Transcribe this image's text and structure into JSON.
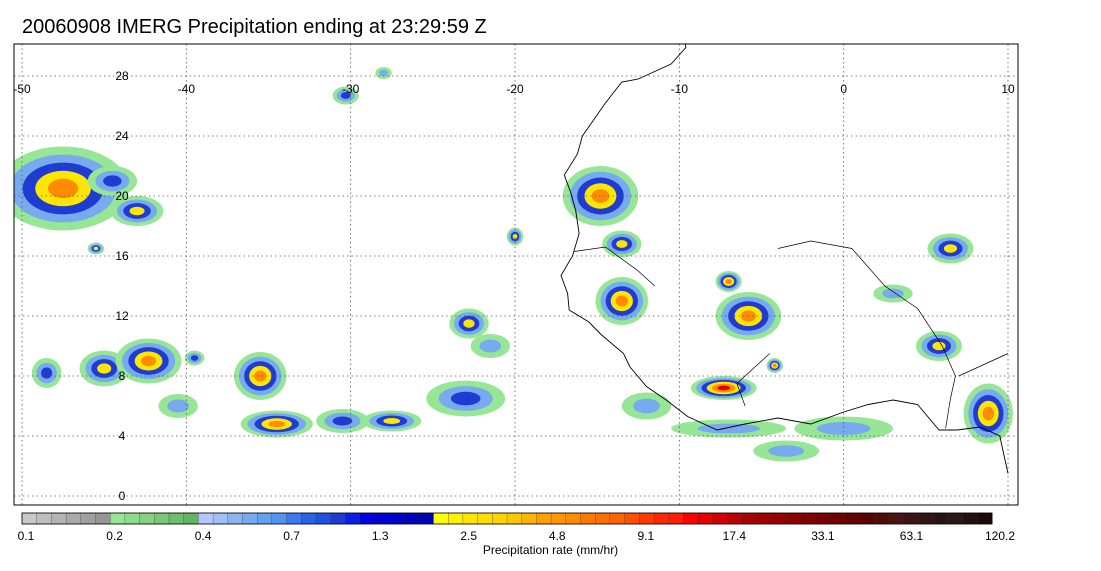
{
  "title": "20060908 IMERG Precipitation ending at 23:29:59 Z",
  "map": {
    "lon_range": [
      -50,
      10
    ],
    "lat_range": [
      -1,
      31
    ],
    "lon_ticks": [
      "-50",
      "-40",
      "-30",
      "-20",
      "-10",
      "0",
      "10"
    ],
    "lat_ticks": [
      "28",
      "24",
      "20",
      "16",
      "12",
      "8",
      "4",
      "0"
    ],
    "grid": "dotted",
    "coastline_color": "#000000",
    "rain_cells": [
      {
        "lon": -47.5,
        "lat": 20.5,
        "rx": 4.0,
        "ry": 2.8,
        "peak": 4
      },
      {
        "lon": -44.5,
        "lat": 21.0,
        "rx": 1.5,
        "ry": 1.0,
        "peak": 2
      },
      {
        "lon": -43.0,
        "lat": 19.0,
        "rx": 1.6,
        "ry": 1.0,
        "peak": 3
      },
      {
        "lon": -45.5,
        "lat": 16.5,
        "rx": 0.5,
        "ry": 0.4,
        "peak": 3
      },
      {
        "lon": -48.5,
        "lat": 8.2,
        "rx": 0.9,
        "ry": 1.0,
        "peak": 2
      },
      {
        "lon": -45.0,
        "lat": 8.5,
        "rx": 1.5,
        "ry": 1.2,
        "peak": 3
      },
      {
        "lon": -42.3,
        "lat": 9.0,
        "rx": 2.0,
        "ry": 1.5,
        "peak": 4
      },
      {
        "lon": -39.5,
        "lat": 9.2,
        "rx": 0.6,
        "ry": 0.5,
        "peak": 2
      },
      {
        "lon": -40.5,
        "lat": 6.0,
        "rx": 1.2,
        "ry": 0.8,
        "peak": 1
      },
      {
        "lon": -35.5,
        "lat": 8.0,
        "rx": 1.6,
        "ry": 1.6,
        "peak": 4
      },
      {
        "lon": -34.5,
        "lat": 4.8,
        "rx": 2.2,
        "ry": 0.9,
        "peak": 4
      },
      {
        "lon": -30.5,
        "lat": 5.0,
        "rx": 1.6,
        "ry": 0.8,
        "peak": 2
      },
      {
        "lon": -27.5,
        "lat": 5.0,
        "rx": 1.8,
        "ry": 0.7,
        "peak": 3
      },
      {
        "lon": -23.0,
        "lat": 6.5,
        "rx": 2.4,
        "ry": 1.2,
        "peak": 2
      },
      {
        "lon": -22.8,
        "lat": 11.5,
        "rx": 1.2,
        "ry": 1.0,
        "peak": 3
      },
      {
        "lon": -21.5,
        "lat": 10.0,
        "rx": 1.2,
        "ry": 0.8,
        "peak": 1
      },
      {
        "lon": -20.0,
        "lat": 17.3,
        "rx": 0.5,
        "ry": 0.6,
        "peak": 3
      },
      {
        "lon": -14.8,
        "lat": 20.0,
        "rx": 2.3,
        "ry": 2.0,
        "peak": 4
      },
      {
        "lon": -13.5,
        "lat": 16.8,
        "rx": 1.2,
        "ry": 0.9,
        "peak": 3
      },
      {
        "lon": -13.5,
        "lat": 13.0,
        "rx": 1.6,
        "ry": 1.6,
        "peak": 4
      },
      {
        "lon": -12.0,
        "lat": 6.0,
        "rx": 1.5,
        "ry": 0.9,
        "peak": 1
      },
      {
        "lon": -7.0,
        "lat": 14.3,
        "rx": 0.8,
        "ry": 0.7,
        "peak": 4
      },
      {
        "lon": -5.8,
        "lat": 12.0,
        "rx": 2.0,
        "ry": 1.6,
        "peak": 4
      },
      {
        "lon": -7.3,
        "lat": 7.2,
        "rx": 2.0,
        "ry": 0.8,
        "peak": 5
      },
      {
        "lon": -4.2,
        "lat": 8.7,
        "rx": 0.5,
        "ry": 0.5,
        "peak": 4
      },
      {
        "lon": -7.0,
        "lat": 4.5,
        "rx": 3.5,
        "ry": 0.6,
        "peak": 1
      },
      {
        "lon": 6.5,
        "lat": 16.5,
        "rx": 1.4,
        "ry": 1.0,
        "peak": 3
      },
      {
        "lon": 5.8,
        "lat": 10.0,
        "rx": 1.4,
        "ry": 1.0,
        "peak": 3
      },
      {
        "lon": 8.8,
        "lat": 5.5,
        "rx": 1.5,
        "ry": 2.0,
        "peak": 4
      },
      {
        "lon": 0.0,
        "lat": 4.5,
        "rx": 3.0,
        "ry": 0.8,
        "peak": 1
      },
      {
        "lon": -30.3,
        "lat": 26.7,
        "rx": 0.8,
        "ry": 0.6,
        "peak": 2
      },
      {
        "lon": -28.0,
        "lat": 28.2,
        "rx": 0.5,
        "ry": 0.4,
        "peak": 1
      },
      {
        "lon": -3.5,
        "lat": 3.0,
        "rx": 2.0,
        "ry": 0.7,
        "peak": 1
      },
      {
        "lon": 3.0,
        "lat": 13.5,
        "rx": 1.2,
        "ry": 0.6,
        "peak": 1
      }
    ]
  },
  "colorbar": {
    "label": "Precipitation rate (mm/hr)",
    "tick_labels": [
      "0.1",
      "0.2",
      "0.4",
      "0.7",
      "1.3",
      "2.5",
      "4.8",
      "9.1",
      "17.4",
      "33.1",
      "63.1",
      "120.2"
    ],
    "colors": [
      "#c8c8c8",
      "#bebebe",
      "#b4b4b4",
      "#aaaaaa",
      "#a0a0a0",
      "#969696",
      "#96e696",
      "#8cdc8c",
      "#82d282",
      "#78c878",
      "#6ebe6e",
      "#64b464",
      "#b4c8ff",
      "#a0bef8",
      "#8cb4f0",
      "#78aaf0",
      "#64a0f0",
      "#5096f0",
      "#3c78f0",
      "#2864e6",
      "#1e50e6",
      "#1e3cd2",
      "#0a1ee6",
      "#0000e6",
      "#0000d2",
      "#0000c8",
      "#0000be",
      "#0000b4",
      "#ffff00",
      "#fff000",
      "#ffe600",
      "#ffdc00",
      "#ffd200",
      "#ffc800",
      "#ffb400",
      "#ffa000",
      "#ff9600",
      "#ff8c00",
      "#ff7800",
      "#ff6e00",
      "#ff6400",
      "#ff5000",
      "#ff3c00",
      "#ff2800",
      "#ff1e00",
      "#ff0000",
      "#e60000",
      "#d20000",
      "#be0000",
      "#aa0000",
      "#a00000",
      "#960000",
      "#8c0000",
      "#820000",
      "#780000",
      "#6e0000",
      "#640000",
      "#5a0000",
      "#500a0a",
      "#461414",
      "#3c1414",
      "#321414",
      "#281414",
      "#2a1818",
      "#221010",
      "#1e0a0a"
    ]
  }
}
